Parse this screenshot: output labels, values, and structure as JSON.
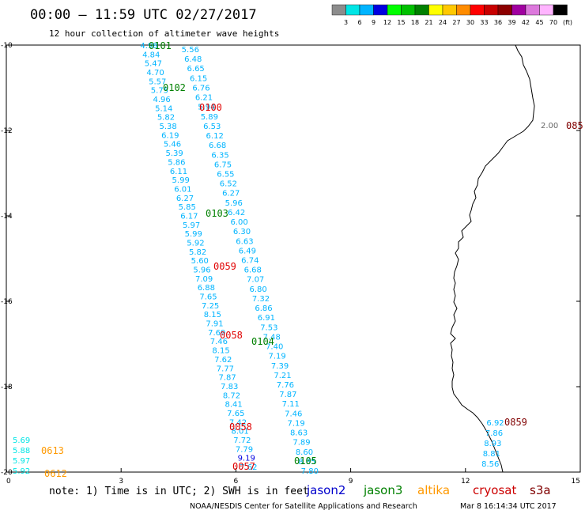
{
  "header": {
    "title": "00:00 – 11:59 UTC 02/27/2017",
    "subtitle": "12 hour collection of altimeter wave heights"
  },
  "color_scale": {
    "colors": [
      "#8c8c8c",
      "#00e5e5",
      "#00b4ff",
      "#0000e0",
      "#00ff00",
      "#00c000",
      "#008000",
      "#ffff00",
      "#ffc800",
      "#ff8c00",
      "#ff0000",
      "#c80000",
      "#8c0000",
      "#a000a0",
      "#dc78dc",
      "#ffb4ff",
      "#000000"
    ],
    "labels": [
      "3",
      "6",
      "9",
      "12",
      "15",
      "18",
      "21",
      "24",
      "27",
      "30",
      "33",
      "36",
      "39",
      "42",
      "45",
      "70"
    ],
    "unit": "(ft)"
  },
  "note": "note: 1) Time is in UTC; 2) SWH is in feet",
  "legend": [
    {
      "name": "jason2",
      "color": "#0000cc"
    },
    {
      "name": "jason3",
      "color": "#008000"
    },
    {
      "name": "altika",
      "color": "#ff9900"
    },
    {
      "name": "cryosat",
      "color": "#cc0000"
    },
    {
      "name": "s3a",
      "color": "#800000"
    }
  ],
  "footer": {
    "credit": "NOAA/NESDIS Center for Satellite Applications and Research",
    "timestamp": "Mar  8 16:14:34 UTC 2017"
  },
  "chart_data": {
    "type": "scatter",
    "title": "00:00 – 11:59 UTC 02/27/2017",
    "xlim": [
      0,
      15
    ],
    "ylim": [
      -20,
      -10
    ],
    "x_ticks": [
      "0",
      "3",
      "6",
      "9",
      "12",
      "15"
    ],
    "y_ticks": [
      "-10",
      "-12",
      "-14",
      "-16",
      "-18",
      "-20"
    ],
    "track_a": {
      "color": "#00b4ff",
      "x_start": 3.5,
      "x_end": 6.1,
      "values": [
        "4.98",
        "4.84",
        "5.47",
        "4.70",
        "5.57",
        "5.75",
        "4.96",
        "5.14",
        "5.82",
        "5.38",
        "6.19",
        "5.46",
        "5.39",
        "5.86",
        "6.11",
        "5.99",
        "6.01",
        "6.27",
        "5.85",
        "6.17",
        "5.97",
        "5.99",
        "5.92",
        "5.82",
        "5.60",
        "5.96",
        "7.09",
        "6.88",
        "7.65",
        "7.25",
        "8.15",
        "7.91",
        "7.69",
        "7.46",
        "8.15",
        "7.62",
        "7.77",
        "7.87",
        "7.83",
        "8.72",
        "8.41",
        "7.65",
        "7.42",
        "8.01",
        "7.72",
        "7.79",
        "9.19",
        "7.62"
      ]
    },
    "track_b": {
      "color": "#00b4ff",
      "x_start": 4.58,
      "x_end": 7.7,
      "values": [
        "5.56",
        "6.48",
        "6.65",
        "6.15",
        "6.76",
        "6.21",
        "5.94",
        "5.89",
        "6.53",
        "6.12",
        "6.68",
        "6.35",
        "6.75",
        "6.55",
        "6.52",
        "6.27",
        "5.96",
        "6.42",
        "6.00",
        "6.30",
        "6.63",
        "6.49",
        "6.74",
        "6.68",
        "7.07",
        "6.80",
        "7.32",
        "6.86",
        "6.91",
        "7.53",
        "7.48",
        "7.40",
        "7.19",
        "7.39",
        "7.21",
        "7.76",
        "7.87",
        "7.11",
        "7.46",
        "7.19",
        "8.63",
        "7.89",
        "8.60",
        "8.85",
        "7.80"
      ]
    },
    "track_c": {
      "color": "#00b4ff",
      "x_start": 12.55,
      "x_end": 12.42,
      "values": [
        "6.92",
        "7.86",
        "8.93",
        "8.81",
        "8.56"
      ]
    },
    "track_d": {
      "color": "#00e5e5",
      "values": [
        "5.69",
        "5.88",
        "5.97",
        "5.92"
      ]
    },
    "pass_labels": [
      {
        "text": "0101",
        "color": "#008000"
      },
      {
        "text": "0102",
        "color": "#008000"
      },
      {
        "text": "0100",
        "color": "#e00000"
      },
      {
        "text": "0103",
        "color": "#008000"
      },
      {
        "text": "0059",
        "color": "#e00000"
      },
      {
        "text": "0058",
        "color": "#e00000"
      },
      {
        "text": "0104",
        "color": "#008000"
      },
      {
        "text": "0058",
        "color": "#e00000"
      },
      {
        "text": "0057",
        "color": "#e00000"
      },
      {
        "text": "0105",
        "color": "#008000"
      },
      {
        "text": "0613",
        "color": "#ff9900"
      },
      {
        "text": "0612",
        "color": "#ff9900"
      },
      {
        "text": "0859",
        "color": "#800000"
      },
      {
        "text": "085",
        "color": "#800000"
      }
    ],
    "single_sample": {
      "value": "2.00"
    }
  }
}
